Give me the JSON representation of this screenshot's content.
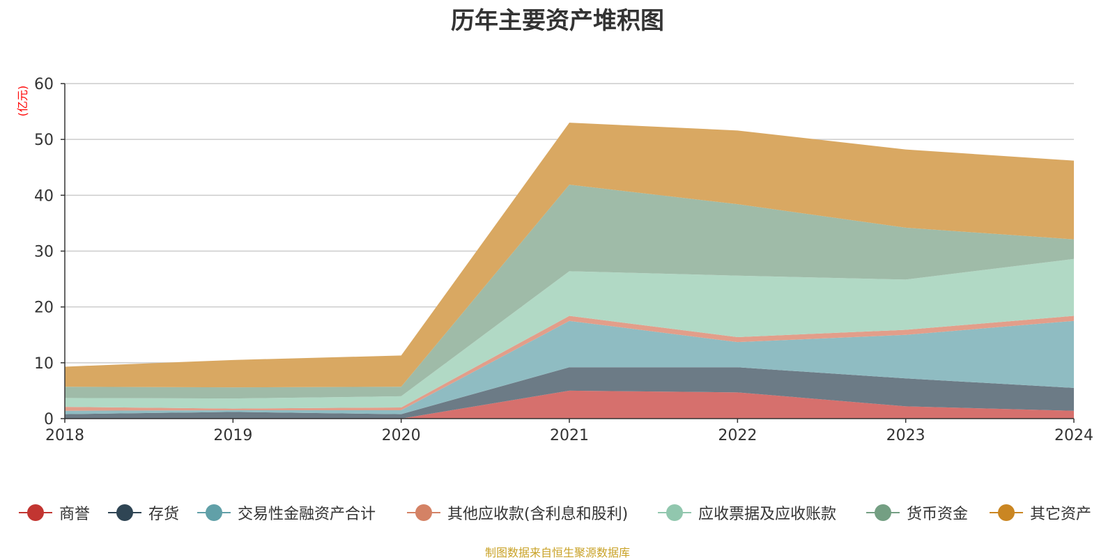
{
  "chart_data": {
    "type": "area",
    "stacked": true,
    "title": "历年主要资产堆积图",
    "ylabel": "(亿元)",
    "xlabel": "",
    "categories": [
      "2018",
      "2019",
      "2020",
      "2021",
      "2022",
      "2023",
      "2024"
    ],
    "ylim": [
      0,
      60
    ],
    "yticks": [
      0,
      10,
      20,
      30,
      40,
      50,
      60
    ],
    "grid": true,
    "legend_position": "bottom",
    "series": [
      {
        "name": "商誉",
        "color": "#c23531",
        "fill": "#d6706d",
        "values": [
          0,
          0,
          0,
          5.0,
          4.7,
          2.2,
          1.4
        ]
      },
      {
        "name": "存货",
        "color": "#2f4554",
        "fill": "#6c7b86",
        "values": [
          0.8,
          1.2,
          0.8,
          4.2,
          4.5,
          5.0,
          4.1
        ]
      },
      {
        "name": "交易性金融资产合计",
        "color": "#61a0a8",
        "fill": "#8fbcc2",
        "values": [
          0.6,
          0.3,
          0.7,
          8.3,
          4.5,
          7.8,
          12.0
        ]
      },
      {
        "name": "其他应收款(含利息和股利)",
        "color": "#d48265",
        "fill": "#e29e8a",
        "values": [
          0.7,
          0.3,
          0.5,
          0.9,
          0.9,
          0.9,
          0.9
        ]
      },
      {
        "name": "应收票据及应收账款",
        "color": "#91c7ae",
        "fill": "#b1d9c5",
        "values": [
          1.6,
          1.8,
          2.0,
          8.0,
          11.0,
          9.0,
          10.2
        ]
      },
      {
        "name": "货币资金",
        "color": "#749f83",
        "fill": "#9fbba8",
        "values": [
          2.0,
          2.0,
          1.7,
          15.5,
          12.8,
          9.3,
          3.5
        ]
      },
      {
        "name": "其它资产",
        "color": "#ca8622",
        "fill": "#d9a862",
        "values": [
          3.6,
          4.9,
          5.6,
          11.1,
          13.2,
          14.0,
          14.1
        ]
      }
    ]
  },
  "source_note": "制图数据来自恒生聚源数据库"
}
